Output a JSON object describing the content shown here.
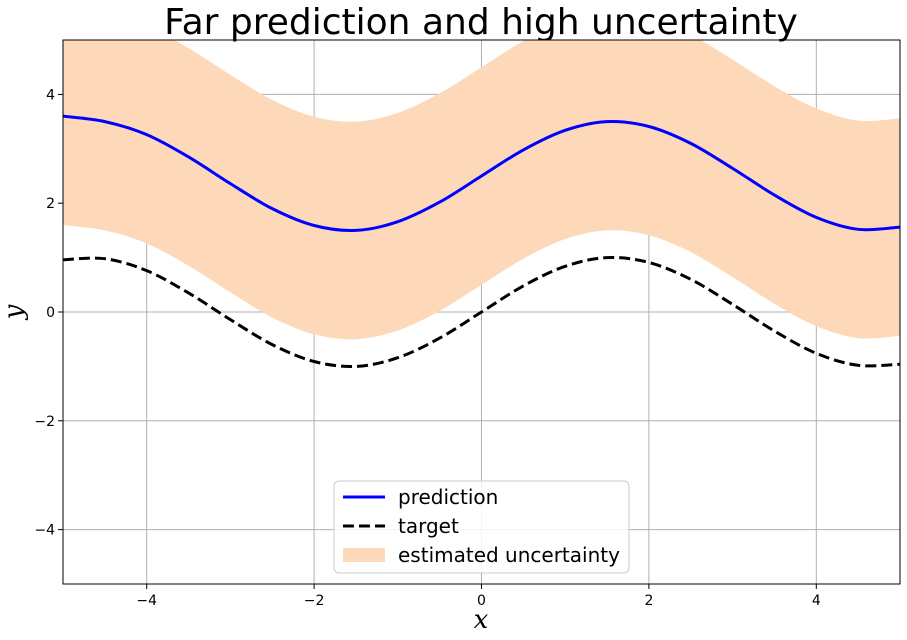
{
  "chart_data": {
    "type": "line",
    "title": "Far prediction and high uncertainty",
    "xlabel": "x",
    "ylabel": "y",
    "xlim": [
      -5,
      5
    ],
    "ylim": [
      -5,
      5
    ],
    "xticks": [
      -4,
      -2,
      0,
      2,
      4
    ],
    "yticks": [
      -4,
      -2,
      0,
      2,
      4
    ],
    "xtick_labels": [
      "−4",
      "−2",
      "0",
      "2",
      "4"
    ],
    "ytick_labels": [
      "−4",
      "−2",
      "0",
      "2",
      "4"
    ],
    "grid": true,
    "legend_position": "bottom-center",
    "x": [
      -5,
      -4.5,
      -4,
      -3.5,
      -3,
      -2.5,
      -2,
      -1.5,
      -1,
      -0.5,
      0,
      0.5,
      1,
      1.5,
      2,
      2.5,
      3,
      3.5,
      4,
      4.5,
      5
    ],
    "series": [
      {
        "name": "prediction",
        "style": "solid",
        "color": "#0000ff",
        "values": [
          3.6,
          3.5,
          3.26,
          2.85,
          2.36,
          1.9,
          1.59,
          1.5,
          1.66,
          2.02,
          2.5,
          2.98,
          3.34,
          3.5,
          3.41,
          3.1,
          2.64,
          2.15,
          1.74,
          1.52,
          1.56
        ]
      },
      {
        "name": "target",
        "style": "dashed",
        "color": "#000000",
        "values": [
          0.96,
          0.98,
          0.76,
          0.35,
          -0.14,
          -0.6,
          -0.91,
          -1.0,
          -0.84,
          -0.48,
          0.0,
          0.48,
          0.84,
          1.0,
          0.91,
          0.6,
          0.14,
          -0.35,
          -0.76,
          -0.98,
          -0.96
        ]
      }
    ],
    "band": {
      "name": "estimated uncertainty",
      "color": "#fdd9b9",
      "lower": [
        1.6,
        1.5,
        1.26,
        0.85,
        0.36,
        -0.1,
        -0.41,
        -0.5,
        -0.34,
        0.02,
        0.5,
        0.98,
        1.34,
        1.5,
        1.41,
        1.1,
        0.64,
        0.15,
        -0.26,
        -0.48,
        -0.44
      ],
      "upper": [
        5.6,
        5.5,
        5.26,
        4.85,
        4.36,
        3.9,
        3.59,
        3.5,
        3.66,
        4.02,
        4.5,
        4.98,
        5.34,
        5.5,
        5.41,
        5.1,
        4.64,
        4.15,
        3.74,
        3.52,
        3.56
      ]
    }
  }
}
